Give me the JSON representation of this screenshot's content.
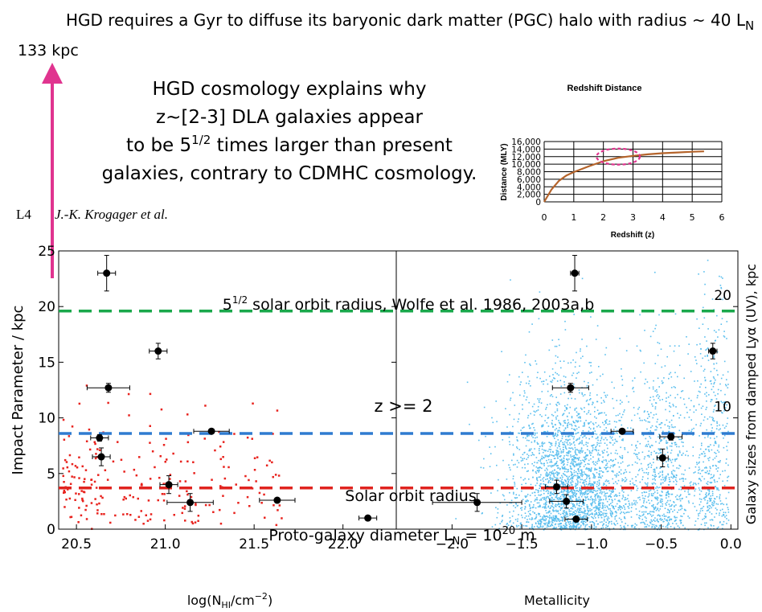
{
  "header": {
    "title_main": "HGD requires a Gyr to diffuse its baryonic dark matter (PGC) halo with radius ~ 40 L",
    "title_sub": "N",
    "arrow_label": "133 kpc",
    "arrow_color": "#e0348f"
  },
  "callout": {
    "line1": "HGD cosmology explains why",
    "line2": "z~[2-3] DLA galaxies appear",
    "line3_pre": "to be 5",
    "line3_sup": "1/2",
    "line3_post": " times larger than present",
    "line4": "galaxies, contrary to CDMHC cosmology."
  },
  "citation": {
    "label": "L4",
    "authors": "J.-K. Krogager et al."
  },
  "chart_data": [
    {
      "type": "line",
      "title": "Redshift Distance",
      "xlabel": "Redshift (z)",
      "ylabel": "Distance (MLY)",
      "xlim": [
        0,
        6
      ],
      "ylim": [
        0,
        16000
      ],
      "xticks": [
        "0",
        "1",
        "2",
        "3",
        "4",
        "5",
        "6"
      ],
      "yticks": [
        "0",
        "2,000",
        "4,000",
        "6,000",
        "8,000",
        "10,000",
        "12,000",
        "14,000",
        "16,000"
      ],
      "grid": true,
      "line_color": "#b5642b",
      "highlight_color": "#e0348f",
      "highlight": {
        "z_center": 2.5,
        "distance_center": 12000
      },
      "x": [
        0,
        0.25,
        0.5,
        0.75,
        1,
        1.5,
        2,
        2.5,
        3,
        3.5,
        4,
        4.5,
        5,
        5.4
      ],
      "y": [
        0,
        3300,
        5600,
        7000,
        7900,
        9400,
        10800,
        11700,
        12200,
        12600,
        12900,
        13100,
        13300,
        13400
      ]
    },
    {
      "type": "scatter",
      "panel": "left",
      "xlabel_pre": "log(N",
      "xlabel_sub": "HI",
      "xlabel_post": "/cm",
      "xlabel_sup": "−2",
      "xlabel_tail": ")",
      "ylabel": "Impact Parameter / kpc",
      "xlim": [
        20.4,
        22.3
      ],
      "ylim": [
        0,
        25
      ],
      "xticks": [
        "20.5",
        "21.0",
        "21.5",
        "22.0"
      ],
      "yticks": [
        "0",
        "5",
        "10",
        "15",
        "20",
        "25"
      ],
      "background_color": "#e8231e",
      "points": [
        {
          "x": 20.67,
          "y": 23.0,
          "xerr": 0.05,
          "yerr": 1.6
        },
        {
          "x": 20.96,
          "y": 16.0,
          "xerr": 0.05,
          "yerr": 0.7
        },
        {
          "x": 20.68,
          "y": 12.7,
          "xerr": 0.12,
          "yerr": 0.4
        },
        {
          "x": 21.26,
          "y": 8.8,
          "xerr": 0.1,
          "yerr": 0.2
        },
        {
          "x": 20.63,
          "y": 8.2,
          "xerr": 0.05,
          "yerr": 0.3
        },
        {
          "x": 20.64,
          "y": 6.5,
          "xerr": 0.05,
          "yerr": 0.8
        },
        {
          "x": 21.02,
          "y": 4.0,
          "xerr": 0.05,
          "yerr": 0.8
        },
        {
          "x": 21.14,
          "y": 2.4,
          "xerr": 0.13,
          "yerr": 0.8
        },
        {
          "x": 21.63,
          "y": 2.6,
          "xerr": 0.1,
          "yerr": 0.2
        },
        {
          "x": 22.14,
          "y": 1.0,
          "xerr": 0.05,
          "yerr": 0.2
        }
      ]
    },
    {
      "type": "scatter",
      "panel": "right",
      "xlabel": "Metallicity",
      "ylabel_pre": "Galaxy sizes from damped Ly",
      "ylabel_alpha": "α",
      "ylabel_post": " (UV), kpc",
      "xlim": [
        -2.4,
        0.05
      ],
      "ylim": [
        0,
        25
      ],
      "xticks": [
        "−2.0",
        "−1.5",
        "−1.0",
        "−0.5",
        "0.0"
      ],
      "right_ticks": [
        "10",
        "20"
      ],
      "background_color": "#5bbfee",
      "points": [
        {
          "x": -1.12,
          "y": 23.0,
          "xerr": 0.03,
          "yerr": 1.6
        },
        {
          "x": -0.13,
          "y": 16.0,
          "xerr": 0.03,
          "yerr": 0.7
        },
        {
          "x": -1.15,
          "y": 12.7,
          "xerr": 0.13,
          "yerr": 0.4
        },
        {
          "x": -0.78,
          "y": 8.8,
          "xerr": 0.08,
          "yerr": 0.2
        },
        {
          "x": -0.43,
          "y": 8.3,
          "xerr": 0.08,
          "yerr": 0.3
        },
        {
          "x": -0.49,
          "y": 6.4,
          "xerr": 0.04,
          "yerr": 0.8
        },
        {
          "x": -1.25,
          "y": 3.8,
          "xerr": 0.08,
          "yerr": 0.6
        },
        {
          "x": -1.82,
          "y": 2.4,
          "xerr": 0.32,
          "yerr": 0.8
        },
        {
          "x": -1.18,
          "y": 2.5,
          "xerr": 0.12,
          "yerr": 0.6
        },
        {
          "x": -1.11,
          "y": 0.9,
          "xerr": 0.08,
          "yerr": 0.2
        }
      ]
    }
  ],
  "reference_lines": [
    {
      "value": 19.6,
      "color": "#1aa84c",
      "label_pre": "5",
      "label_sup": "1/2",
      "label_post": " solar orbit radius, Wolfe et al. 1986, 2003a,b"
    },
    {
      "value": 8.6,
      "color": "#2f7bd0",
      "label_pre": "Solar orbit radius",
      "label_sup": "",
      "label_post": ""
    },
    {
      "value": 3.7,
      "color": "#e0241f",
      "label_pre": "Proto-galaxy diameter L",
      "label_sub": "N",
      "label_mid": " = 10",
      "label_sup": "20",
      "label_post": " m"
    }
  ],
  "annotation_z": "z >= 2"
}
